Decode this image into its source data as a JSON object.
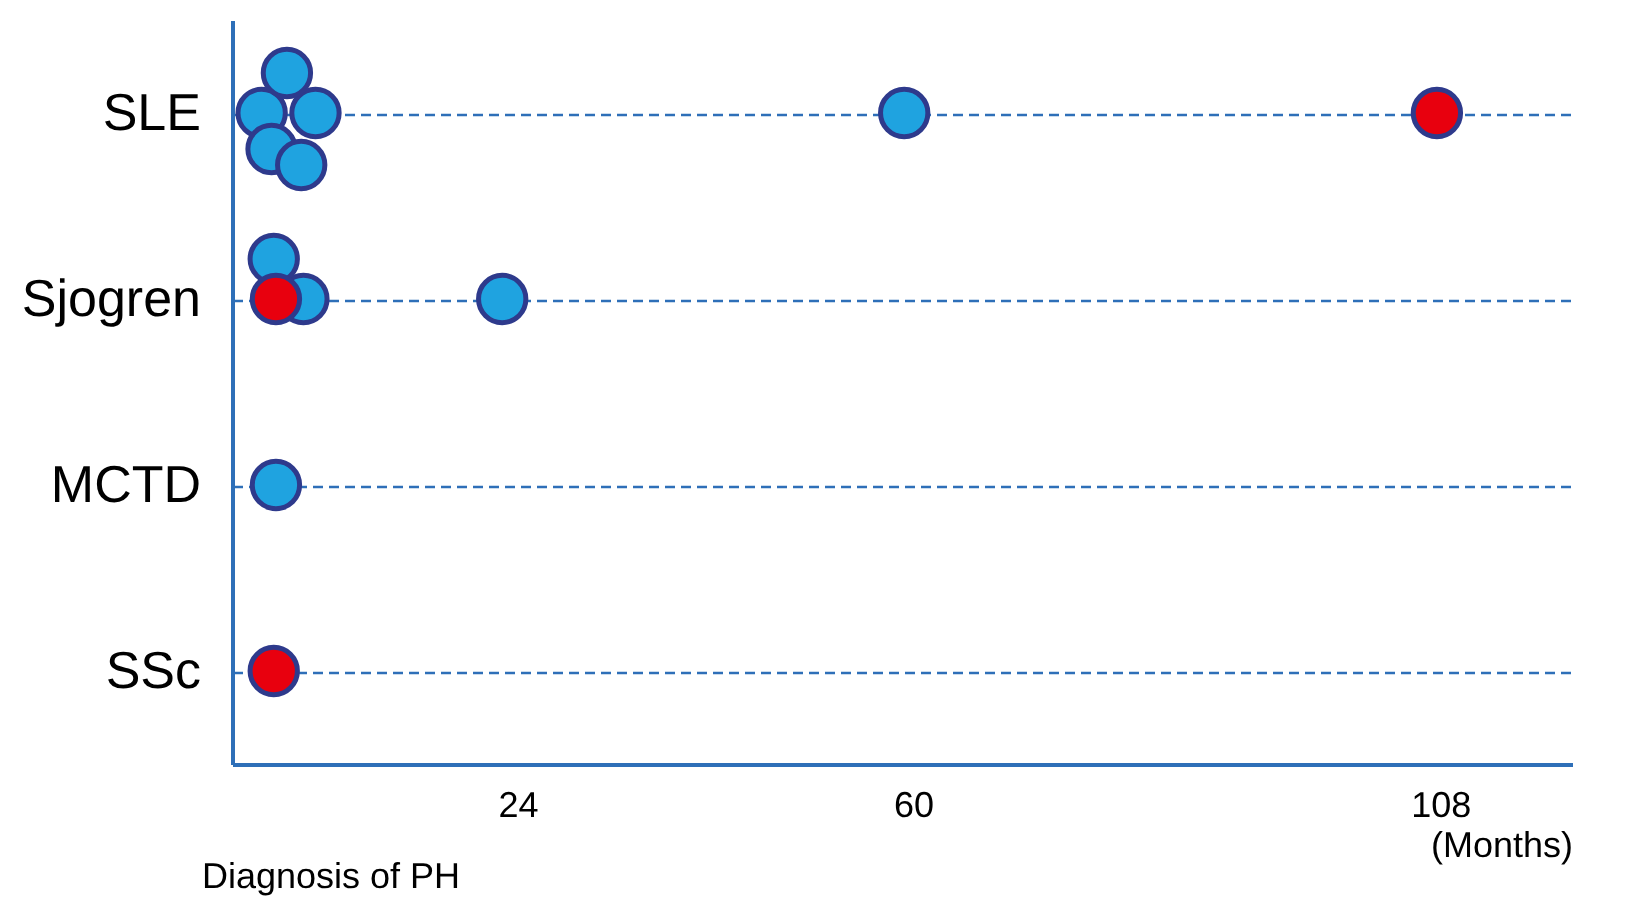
{
  "chart_data": {
    "type": "scatter",
    "orientation": "horizontal",
    "xlabel": "(Months)",
    "categories": [
      "SLE",
      "Sjogren",
      "MCTD",
      "SSc"
    ],
    "xlim": [
      -2,
      120
    ],
    "xticks": [
      24,
      60,
      108
    ],
    "marker": "circle",
    "grid": "y",
    "legend": false,
    "series": [
      {
        "color": "#1fa3e0",
        "values": [
          59.2,
          22.6,
          2.0,
          null
        ]
      },
      {
        "color": "#1fa3e0",
        "values": [
          0.7,
          null,
          null,
          null
        ]
      },
      {
        "color": "#1fa3e0",
        "values": [
          5.6,
          4.5,
          null,
          null
        ]
      },
      {
        "color": "#1fa3e0",
        "values": [
          3.0,
          1.8,
          null,
          null
        ]
      },
      {
        "color": "#1fa3e0",
        "values": [
          1.6,
          null,
          null,
          null
        ]
      },
      {
        "color": "#1fa3e0",
        "values": [
          4.3,
          null,
          null,
          null
        ]
      },
      {
        "color": "#e8000e",
        "values": [
          107.7,
          2.0,
          null,
          1.8
        ]
      }
    ],
    "annotations": [
      "Diagnosis of PH"
    ]
  }
}
